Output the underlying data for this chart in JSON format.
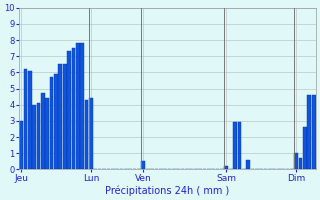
{
  "title": "Précipitations 24h ( mm )",
  "bar_color": "#1155dd",
  "bar_edge_color": "#0033aa",
  "background_color": "#e0f8f8",
  "grid_color": "#b8c8c8",
  "text_color": "#2222cc",
  "ylim": [
    0,
    10
  ],
  "yticks": [
    0,
    1,
    2,
    3,
    4,
    5,
    6,
    7,
    8,
    9,
    10
  ],
  "bar_values": [
    3.0,
    6.2,
    6.1,
    4.0,
    4.1,
    4.7,
    4.4,
    5.7,
    5.9,
    6.5,
    6.5,
    7.3,
    7.5,
    7.8,
    7.8,
    4.3,
    4.4,
    0.0,
    0.0,
    0.0,
    0.0,
    0.0,
    0.0,
    0.0,
    0.0,
    0.0,
    0.0,
    0.0,
    0.5,
    0.0,
    0.0,
    0.0,
    0.0,
    0.0,
    0.0,
    0.0,
    0.0,
    0.0,
    0.0,
    0.0,
    0.0,
    0.0,
    0.0,
    0.0,
    0.0,
    0.0,
    0.0,
    0.2,
    0.0,
    2.9,
    2.9,
    0.0,
    0.6,
    0.0,
    0.0,
    0.0,
    0.0,
    0.0,
    0.0,
    0.0,
    0.0,
    0.0,
    0.0,
    1.0,
    0.7,
    2.6,
    4.6,
    4.6
  ],
  "x_tick_labels": [
    "Jeu",
    "Lun",
    "Ven",
    "Sam",
    "Dim"
  ],
  "x_tick_positions": [
    0,
    16,
    28,
    47,
    63
  ],
  "vline_positions": [
    16,
    28,
    47,
    63
  ],
  "n_bars": 68
}
